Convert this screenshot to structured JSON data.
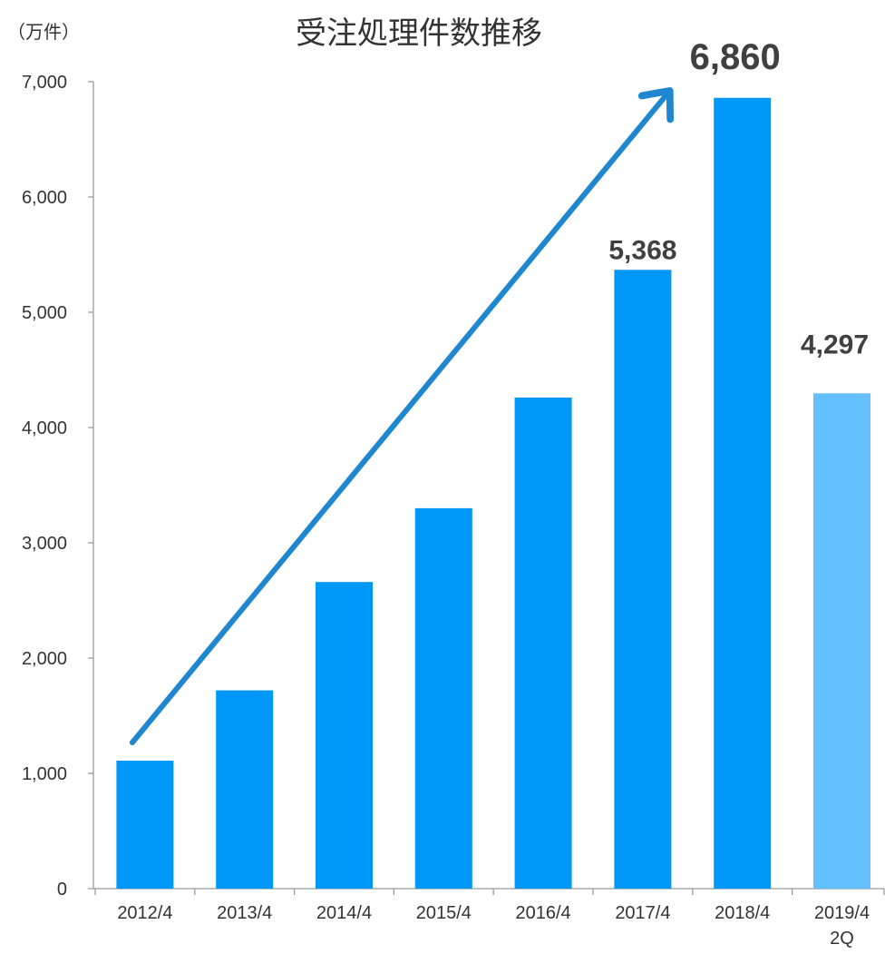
{
  "chart_data": {
    "type": "bar",
    "title": "受注処理件数推移",
    "unit_label": "（万件）",
    "categories": [
      [
        "2012/4"
      ],
      [
        "2013/4"
      ],
      [
        "2014/4"
      ],
      [
        "2015/4"
      ],
      [
        "2016/4"
      ],
      [
        "2017/4"
      ],
      [
        "2018/4"
      ],
      [
        "2019/4",
        "2Q"
      ]
    ],
    "values": [
      1110,
      1720,
      2660,
      3300,
      4260,
      5368,
      6860,
      4297
    ],
    "data_labels": [
      null,
      null,
      null,
      null,
      null,
      "5,368",
      "6,860",
      "4,297"
    ],
    "yticks": [
      "0",
      "1,000",
      "2,000",
      "3,000",
      "4,000",
      "5,000",
      "6,000",
      "7,000"
    ],
    "ylim": [
      0,
      7000
    ],
    "grid": false,
    "legend": "none",
    "trend_arrow": {
      "from_category": 0,
      "to_category": 6,
      "color": "#1f86d0"
    },
    "colors": {
      "bar": "#0098f8",
      "bar_partial": "#63c0fc",
      "axis": "#9a9a9a",
      "text": "#333333",
      "data_label": "#404040"
    }
  }
}
